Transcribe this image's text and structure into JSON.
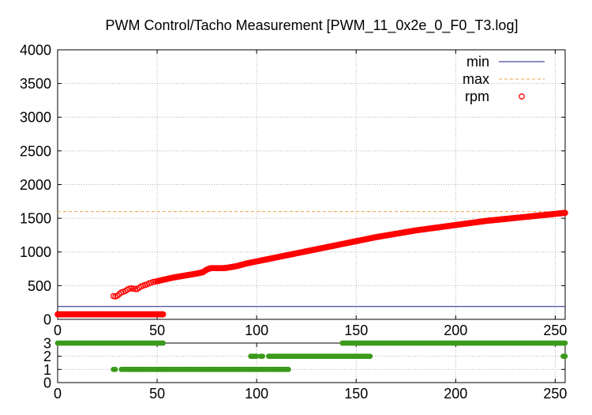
{
  "chart_data": [
    {
      "type": "scatter",
      "title": "PWM Control/Tacho Measurement [PWM_11_0x2e_0_F0_T3.log]",
      "xlim": [
        0,
        255
      ],
      "ylim": [
        0,
        4000
      ],
      "xticks": [
        0,
        50,
        100,
        150,
        200,
        250
      ],
      "yticks": [
        0,
        500,
        1000,
        1500,
        2000,
        2500,
        3000,
        3500,
        4000
      ],
      "grid": true,
      "legend_position": "top-right",
      "series": [
        {
          "name": "min",
          "style": "line",
          "color": "#1a1a8c",
          "y": 190
        },
        {
          "name": "max",
          "style": "dashed-line",
          "color": "#f0a040",
          "y": 1600
        },
        {
          "name": "rpm",
          "style": "circle-markers",
          "color": "#ff0000",
          "low_band": {
            "x": [
              0,
              53
            ],
            "y": 75
          },
          "points": [
            [
              28,
              345
            ],
            [
              29,
              340
            ],
            [
              30,
              350
            ],
            [
              31,
              375
            ],
            [
              32,
              400
            ],
            [
              33,
              410
            ],
            [
              34,
              420
            ],
            [
              35,
              440
            ],
            [
              36,
              455
            ],
            [
              37,
              460
            ],
            [
              38,
              455
            ],
            [
              39,
              450
            ],
            [
              40,
              450
            ],
            [
              41,
              470
            ],
            [
              42,
              490
            ],
            [
              43,
              500
            ],
            [
              44,
              510
            ],
            [
              45,
              520
            ],
            [
              46,
              535
            ],
            [
              47,
              545
            ],
            [
              48,
              555
            ],
            [
              49,
              560
            ],
            [
              50,
              565
            ],
            [
              52,
              580
            ],
            [
              55,
              600
            ],
            [
              58,
              620
            ],
            [
              61,
              635
            ],
            [
              64,
              650
            ],
            [
              67,
              665
            ],
            [
              70,
              680
            ],
            [
              73,
              700
            ],
            [
              75,
              740
            ],
            [
              77,
              760
            ],
            [
              80,
              760
            ],
            [
              83,
              760
            ],
            [
              85,
              765
            ],
            [
              90,
              790
            ],
            [
              95,
              830
            ],
            [
              100,
              860
            ],
            [
              105,
              890
            ],
            [
              110,
              920
            ],
            [
              115,
              950
            ],
            [
              120,
              980
            ],
            [
              125,
              1010
            ],
            [
              130,
              1040
            ],
            [
              135,
              1070
            ],
            [
              140,
              1100
            ],
            [
              145,
              1130
            ],
            [
              150,
              1160
            ],
            [
              155,
              1190
            ],
            [
              160,
              1220
            ],
            [
              165,
              1245
            ],
            [
              170,
              1270
            ],
            [
              175,
              1295
            ],
            [
              180,
              1320
            ],
            [
              185,
              1340
            ],
            [
              190,
              1360
            ],
            [
              195,
              1380
            ],
            [
              200,
              1400
            ],
            [
              205,
              1420
            ],
            [
              210,
              1440
            ],
            [
              215,
              1460
            ],
            [
              220,
              1475
            ],
            [
              225,
              1490
            ],
            [
              230,
              1505
            ],
            [
              235,
              1520
            ],
            [
              240,
              1535
            ],
            [
              245,
              1550
            ],
            [
              250,
              1565
            ],
            [
              253,
              1575
            ],
            [
              255,
              1580
            ]
          ]
        }
      ]
    },
    {
      "type": "scatter",
      "xlim": [
        0,
        255
      ],
      "ylim": [
        0,
        3
      ],
      "xticks": [
        0,
        50,
        100,
        150,
        200,
        250
      ],
      "yticks": [
        0,
        1,
        2,
        3
      ],
      "grid": true,
      "series": [
        {
          "name": "",
          "color": "#3a9a1a",
          "segments": [
            {
              "y": 3,
              "x": [
                0,
                53
              ]
            },
            {
              "y": 3,
              "x": [
                143,
                255
              ]
            },
            {
              "y": 2,
              "x": [
                97,
                100
              ]
            },
            {
              "y": 2,
              "x": [
                102,
                103
              ]
            },
            {
              "y": 2,
              "x": [
                106,
                157
              ]
            },
            {
              "y": 2,
              "x": [
                254,
                255
              ]
            },
            {
              "y": 1,
              "x": [
                28,
                29
              ]
            },
            {
              "y": 1,
              "x": [
                32,
                116
              ]
            }
          ]
        }
      ]
    }
  ]
}
